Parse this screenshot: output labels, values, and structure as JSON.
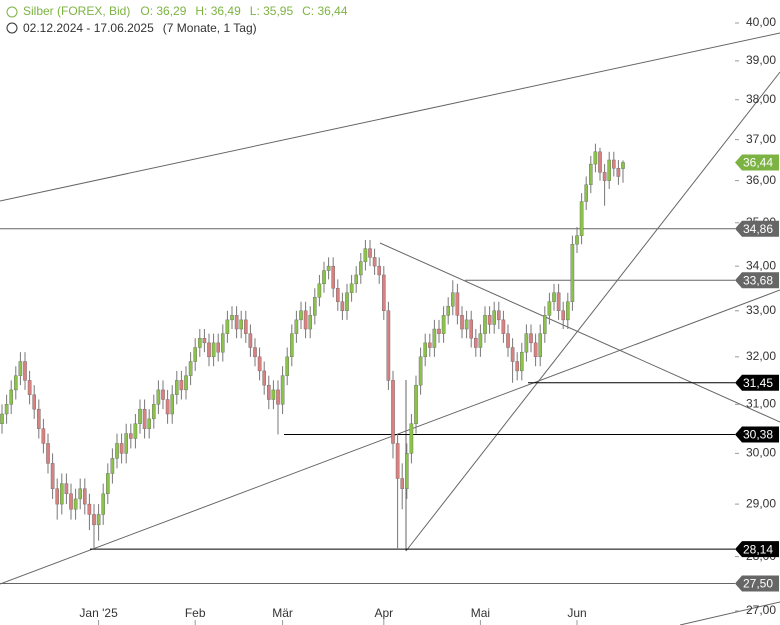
{
  "chart_data": {
    "type": "candlestick",
    "title": "Silber (FOREX, Bid)",
    "ohlc_header": [
      "O: 36,29",
      "H: 36,49",
      "L: 35,95",
      "C: 36,44"
    ],
    "subtitle": "02.12.2024 - 17.06.2025",
    "period": "(7 Monate, 1 Tag)",
    "open": [
      30.6,
      30.8,
      31.0,
      31.3,
      31.6,
      31.9,
      31.5,
      31.2,
      30.9,
      30.5,
      30.2,
      29.8,
      29.3,
      29.0,
      29.4,
      29.2,
      28.9,
      29.1,
      29.3,
      29.0,
      28.8,
      28.6,
      28.8,
      29.2,
      29.6,
      29.9,
      30.2,
      30.0,
      30.4,
      30.3,
      30.6,
      30.9,
      30.5,
      30.7,
      31.0,
      31.3,
      31.1,
      30.8,
      31.2,
      31.5,
      31.3,
      31.6,
      31.9,
      32.2,
      32.4,
      32.3,
      32.0,
      32.3,
      32.1,
      32.5,
      32.8,
      32.9,
      32.6,
      32.8,
      32.5,
      32.2,
      32.0,
      31.7,
      31.4,
      31.1,
      31.3,
      31.0,
      31.6,
      32.0,
      32.5,
      32.8,
      33.0,
      32.6,
      32.9,
      33.3,
      33.6,
      33.9,
      34.0,
      33.5,
      33.2,
      33.0,
      33.4,
      33.6,
      33.8,
      34.1,
      34.4,
      34.2,
      34.0,
      33.8,
      33.0,
      31.5,
      30.2,
      29.5,
      29.3,
      30.0,
      30.6,
      31.4,
      32.0,
      32.3,
      32.2,
      32.6,
      32.5,
      32.9,
      33.1,
      33.4,
      32.9,
      32.6,
      32.8,
      32.4,
      32.2,
      32.5,
      32.9,
      32.7,
      33.0,
      32.8,
      32.5,
      32.2,
      31.9,
      31.7,
      32.1,
      32.5,
      32.3,
      32.0,
      32.5,
      32.9,
      33.2,
      33.4,
      33.0,
      32.8,
      33.2,
      34.5,
      34.7,
      35.5,
      35.9,
      36.4,
      36.7,
      36.2,
      36.0,
      36.5,
      36.3,
      36.29
    ],
    "high": [
      31.0,
      31.2,
      31.5,
      31.8,
      32.1,
      32.1,
      31.7,
      31.4,
      31.1,
      30.7,
      30.4,
      30.0,
      29.5,
      29.6,
      29.6,
      29.4,
      29.3,
      29.5,
      29.5,
      29.2,
      29.0,
      29.0,
      29.4,
      29.8,
      30.1,
      30.4,
      30.4,
      30.6,
      30.6,
      30.8,
      31.1,
      31.1,
      30.9,
      31.2,
      31.5,
      31.5,
      31.3,
      31.4,
      31.7,
      31.7,
      31.8,
      32.1,
      32.4,
      32.6,
      32.6,
      32.5,
      32.5,
      32.5,
      32.7,
      33.0,
      33.1,
      33.1,
      33.0,
      33.0,
      32.7,
      32.4,
      32.2,
      31.9,
      31.6,
      31.5,
      31.5,
      31.8,
      32.2,
      32.7,
      33.0,
      33.2,
      33.2,
      33.1,
      33.5,
      33.8,
      34.1,
      34.2,
      34.2,
      33.7,
      33.4,
      33.6,
      33.8,
      34.0,
      34.3,
      34.6,
      34.6,
      34.4,
      34.2,
      34.0,
      33.2,
      31.7,
      30.4,
      29.8,
      30.2,
      30.8,
      31.6,
      32.2,
      32.5,
      32.5,
      32.8,
      32.8,
      33.1,
      33.3,
      33.68,
      33.6,
      33.1,
      33.0,
      33.0,
      32.6,
      32.7,
      33.1,
      33.1,
      33.2,
      33.2,
      33.0,
      32.7,
      32.4,
      32.1,
      32.3,
      32.7,
      32.7,
      32.5,
      32.7,
      33.1,
      33.4,
      33.6,
      33.6,
      33.2,
      33.4,
      34.7,
      34.9,
      35.7,
      36.1,
      36.6,
      36.9,
      36.8,
      36.4,
      36.7,
      36.7,
      36.5,
      36.49
    ],
    "low": [
      30.4,
      30.6,
      30.8,
      31.1,
      31.4,
      31.3,
      31.0,
      30.7,
      30.3,
      30.0,
      29.6,
      29.1,
      28.7,
      28.8,
      29.0,
      28.7,
      28.7,
      28.9,
      28.8,
      28.5,
      28.14,
      28.3,
      28.6,
      29.0,
      29.4,
      29.7,
      29.8,
      29.8,
      30.1,
      30.1,
      30.4,
      30.3,
      30.3,
      30.5,
      30.8,
      30.9,
      30.6,
      30.6,
      31.0,
      31.1,
      31.1,
      31.4,
      31.7,
      32.0,
      32.1,
      31.8,
      31.8,
      31.9,
      31.9,
      32.3,
      32.6,
      32.4,
      32.4,
      32.3,
      32.0,
      31.8,
      31.5,
      31.2,
      30.9,
      30.9,
      30.38,
      30.8,
      31.4,
      31.8,
      32.3,
      32.6,
      32.4,
      32.4,
      32.7,
      33.1,
      33.4,
      33.7,
      33.3,
      33.0,
      32.8,
      32.8,
      33.2,
      33.4,
      33.6,
      33.9,
      34.0,
      33.8,
      33.6,
      32.8,
      31.3,
      29.9,
      28.14,
      28.9,
      29.1,
      29.8,
      30.4,
      31.2,
      31.8,
      32.0,
      32.0,
      32.3,
      32.3,
      32.7,
      32.9,
      32.7,
      32.4,
      32.4,
      32.2,
      32.0,
      32.0,
      32.3,
      32.5,
      32.5,
      32.6,
      32.3,
      32.0,
      31.45,
      31.5,
      31.5,
      31.9,
      32.1,
      31.8,
      31.8,
      32.3,
      32.7,
      33.0,
      32.8,
      32.6,
      32.6,
      33.0,
      34.3,
      34.5,
      35.3,
      35.7,
      36.2,
      36.0,
      35.4,
      35.8,
      36.1,
      35.9,
      35.95
    ],
    "close": [
      30.8,
      31.0,
      31.3,
      31.6,
      31.9,
      31.5,
      31.2,
      30.9,
      30.5,
      30.2,
      29.8,
      29.3,
      29.0,
      29.4,
      29.2,
      28.9,
      29.1,
      29.3,
      29.0,
      28.8,
      28.6,
      28.8,
      29.2,
      29.6,
      29.9,
      30.2,
      30.0,
      30.4,
      30.3,
      30.6,
      30.9,
      30.5,
      30.7,
      31.0,
      31.3,
      31.1,
      30.8,
      31.2,
      31.5,
      31.3,
      31.6,
      31.9,
      32.2,
      32.4,
      32.3,
      32.0,
      32.3,
      32.1,
      32.5,
      32.8,
      32.9,
      32.6,
      32.8,
      32.5,
      32.2,
      32.0,
      31.7,
      31.4,
      31.1,
      31.3,
      31.0,
      31.6,
      32.0,
      32.5,
      32.8,
      33.0,
      32.6,
      32.9,
      33.3,
      33.6,
      33.9,
      34.0,
      33.5,
      33.2,
      33.0,
      33.4,
      33.6,
      33.8,
      34.1,
      34.4,
      34.2,
      34.0,
      33.8,
      33.0,
      31.5,
      30.2,
      29.5,
      29.3,
      30.0,
      30.6,
      31.4,
      32.0,
      32.3,
      32.2,
      32.6,
      32.5,
      32.9,
      33.1,
      33.4,
      32.9,
      32.6,
      32.8,
      32.4,
      32.2,
      32.5,
      32.9,
      32.7,
      33.0,
      32.8,
      32.5,
      32.2,
      31.9,
      31.7,
      32.1,
      32.5,
      32.3,
      32.0,
      32.5,
      32.9,
      33.2,
      33.4,
      33.0,
      32.8,
      33.2,
      34.5,
      34.7,
      35.5,
      35.9,
      36.4,
      36.7,
      36.2,
      36.0,
      36.5,
      36.3,
      36.1,
      36.44
    ],
    "up_color": "#8bc34a",
    "down_color": "#d98080",
    "xticks": [
      {
        "value": 21,
        "label": "Jan '25"
      },
      {
        "value": 42,
        "label": "Feb"
      },
      {
        "value": 61,
        "label": "Mär"
      },
      {
        "value": 83,
        "label": "Apr"
      },
      {
        "value": 104,
        "label": "Mai"
      },
      {
        "value": 125,
        "label": "Jun"
      }
    ],
    "ylim": [
      27,
      40
    ],
    "log_scale": true,
    "yticks": [
      {
        "value": 27,
        "label": "27,00"
      },
      {
        "value": 28,
        "label": "28,00"
      },
      {
        "value": 29,
        "label": "29,00"
      },
      {
        "value": 30,
        "label": "30,00"
      },
      {
        "value": 31,
        "label": "31,00"
      },
      {
        "value": 32,
        "label": "32,00"
      },
      {
        "value": 33,
        "label": "33,00"
      },
      {
        "value": 34,
        "label": "34,00"
      },
      {
        "value": 35,
        "label": "35,00"
      },
      {
        "value": 36,
        "label": "36,00"
      },
      {
        "value": 37,
        "label": "37,00"
      },
      {
        "value": 38,
        "label": "38,00"
      },
      {
        "value": 39,
        "label": "39,00"
      },
      {
        "value": 40,
        "label": "40,00"
      }
    ],
    "levels": [
      {
        "value": 34.86,
        "label": "34,86",
        "color": "#666666"
      },
      {
        "value": 33.68,
        "label": "33,68",
        "color": "#666666"
      },
      {
        "value": 31.45,
        "label": "31,45",
        "color": "#000000"
      },
      {
        "value": 30.38,
        "label": "30,38",
        "color": "#000000"
      },
      {
        "value": 28.14,
        "label": "28,14",
        "color": "#000000"
      },
      {
        "value": 27.5,
        "label": "27,50",
        "color": "#666666"
      }
    ],
    "last": {
      "value": 36.44,
      "label": "36,44",
      "color": "#7cb342"
    }
  }
}
